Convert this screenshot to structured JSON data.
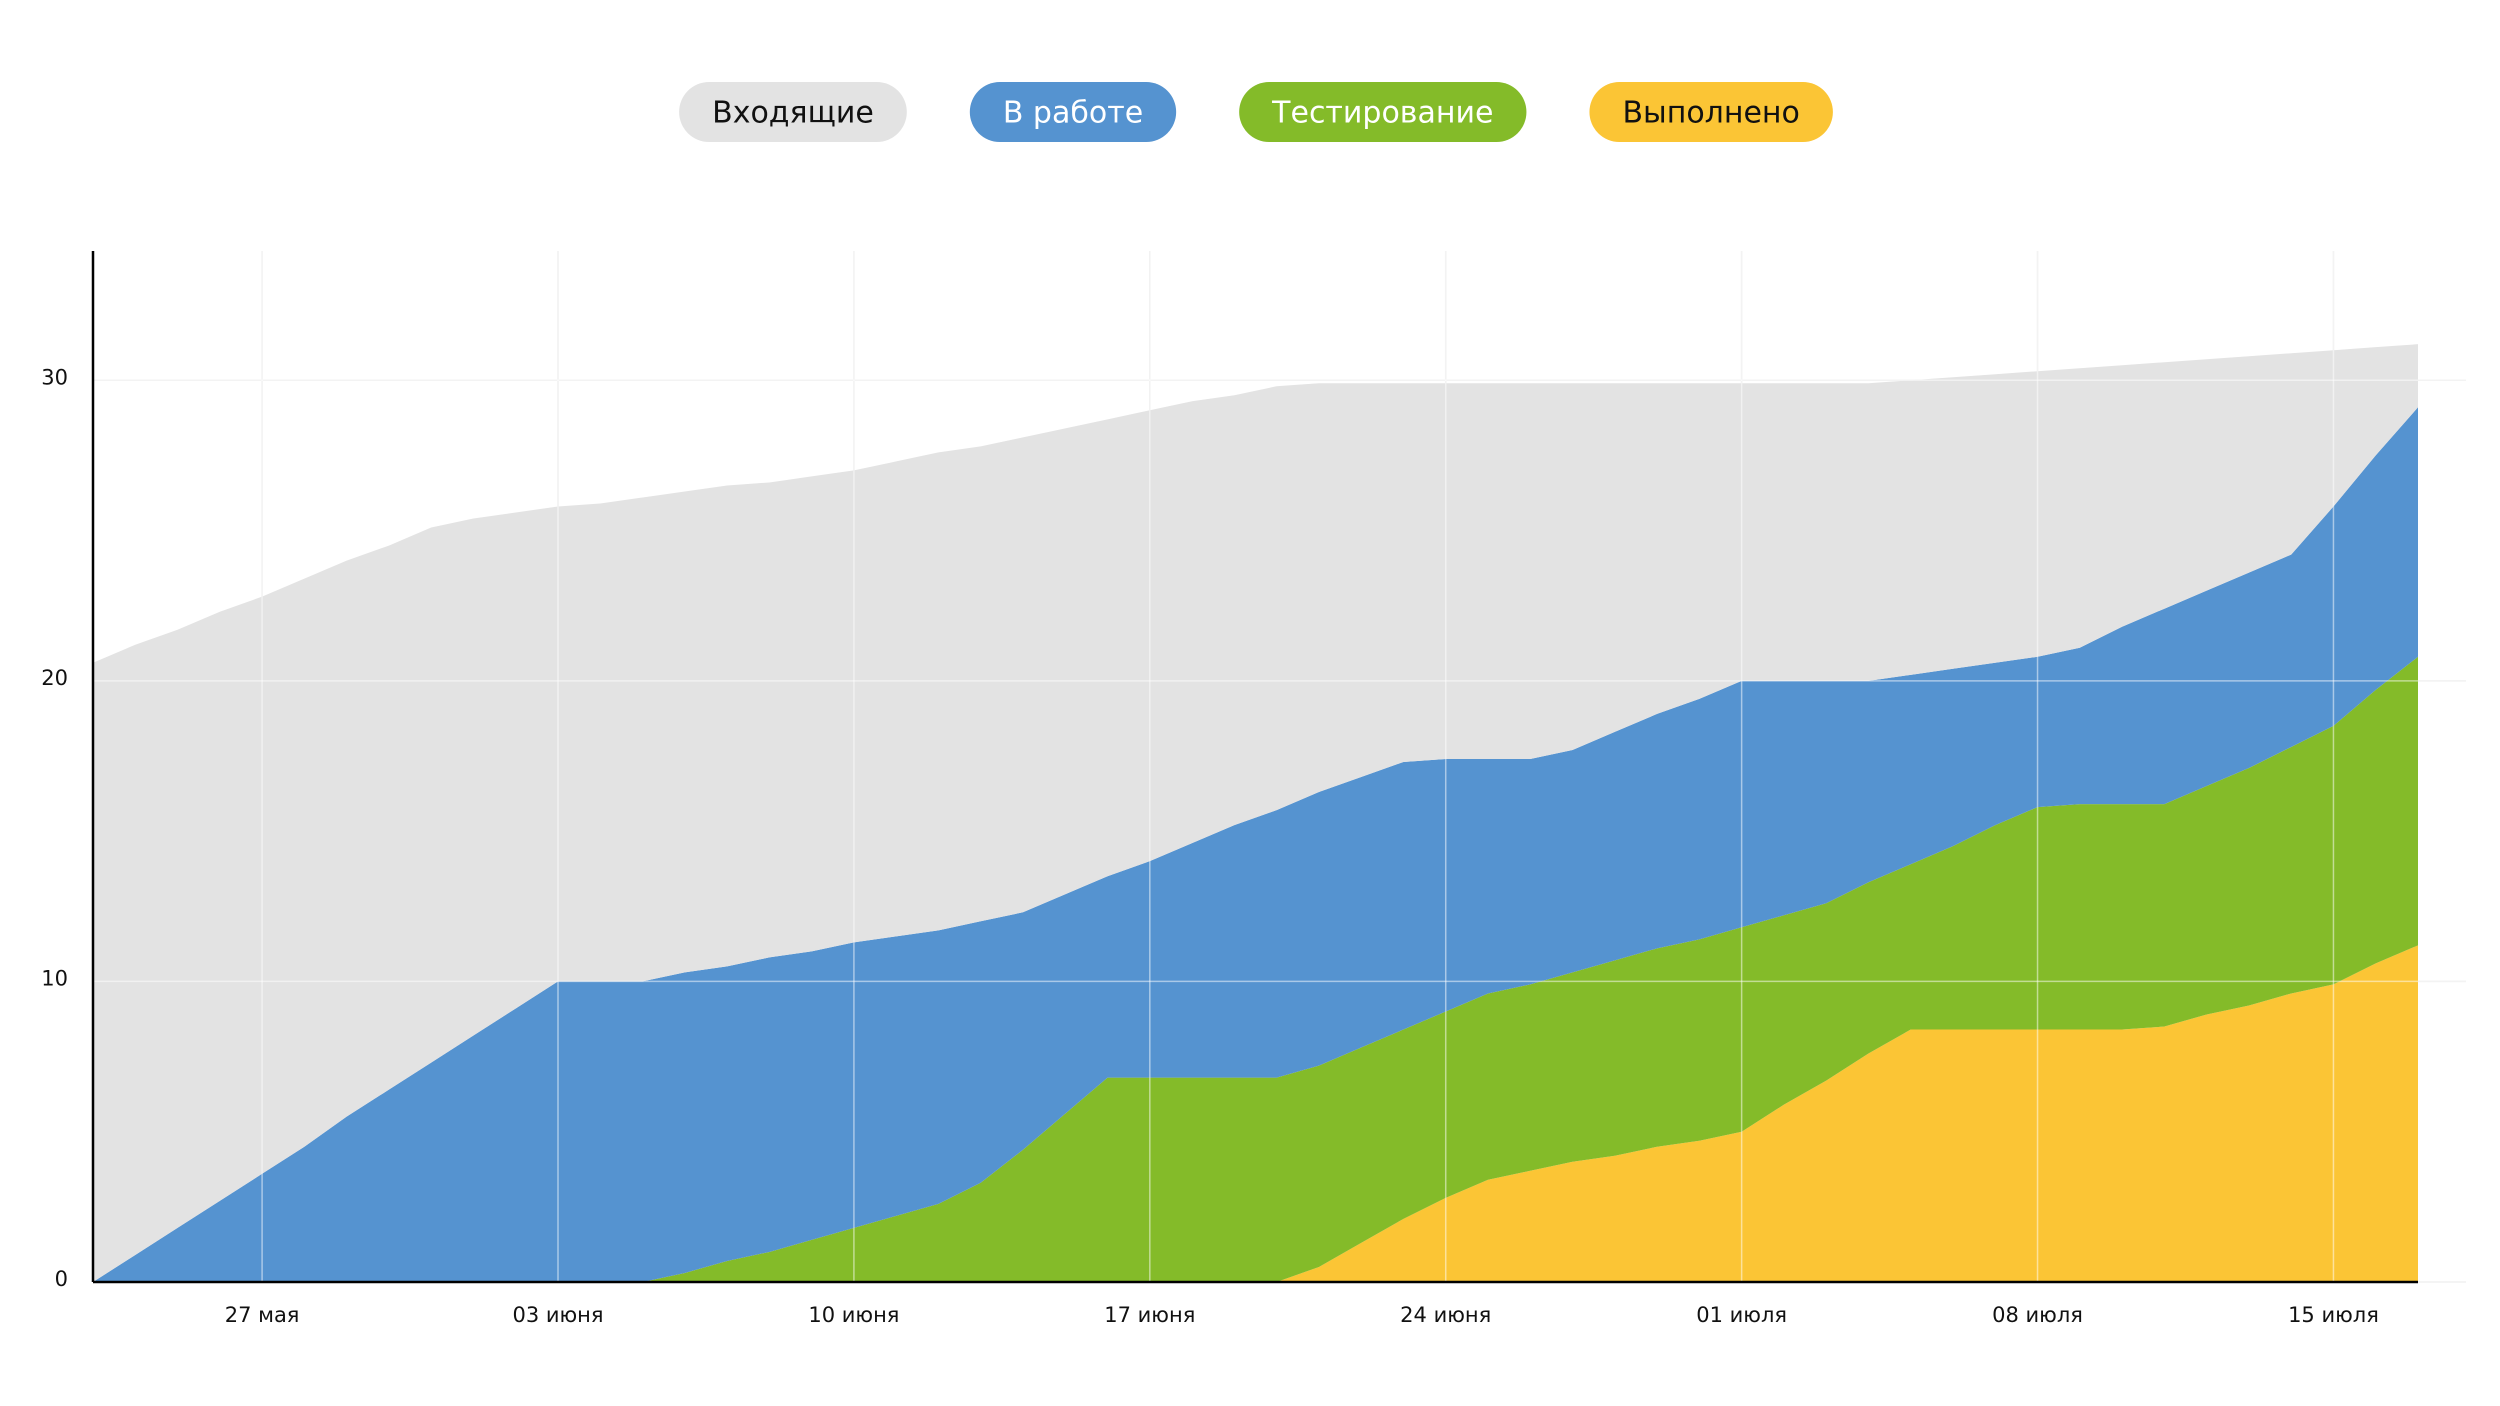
{
  "chart_data": {
    "type": "stacked_area",
    "categories": [
      null,
      null,
      null,
      null,
      "27 мая",
      null,
      null,
      null,
      null,
      null,
      null,
      "03 июня",
      null,
      null,
      null,
      null,
      null,
      null,
      "10 июня",
      null,
      null,
      null,
      null,
      null,
      null,
      "17 июня",
      null,
      null,
      null,
      null,
      null,
      null,
      "24 июня",
      null,
      null,
      null,
      null,
      null,
      null,
      "01 июля",
      null,
      null,
      null,
      null,
      null,
      null,
      "08 июля",
      null,
      null,
      null,
      null,
      null,
      null,
      "15 июля",
      null,
      null
    ],
    "series": [
      {
        "name": "Входящие",
        "color": "#e3e3e3",
        "values": [
          20.6,
          20.3,
          19.9,
          19.6,
          19.2,
          18.9,
          18.5,
          18.1,
          17.8,
          17.2,
          16.5,
          15.8,
          15.9,
          16.1,
          16.0,
          16.0,
          15.8,
          15.8,
          15.7,
          15.8,
          15.9,
          15.8,
          15.8,
          15.5,
          15.2,
          15.0,
          14.7,
          14.3,
          14.1,
          13.6,
          13.1,
          12.6,
          12.5,
          12.5,
          12.5,
          12.2,
          11.6,
          11.0,
          10.5,
          9.9,
          9.9,
          9.9,
          9.9,
          9.8,
          9.7,
          9.6,
          9.5,
          9.3,
          8.7,
          8.2,
          7.7,
          7.2,
          6.7,
          5.2,
          3.6,
          2.1
        ]
      },
      {
        "name": "В работе",
        "color": "#5593d0",
        "values": [
          0,
          0.9,
          1.8,
          2.7,
          3.6,
          4.5,
          5.5,
          6.4,
          7.3,
          8.2,
          9.1,
          10,
          10,
          10,
          10.0,
          9.8,
          9.8,
          9.6,
          9.5,
          9.3,
          9.1,
          8.7,
          7.9,
          7.3,
          6.7,
          7.2,
          7.8,
          8.4,
          8.9,
          9.1,
          9.0,
          8.9,
          8.4,
          7.8,
          7.5,
          7.4,
          7.6,
          7.8,
          8.0,
          8.2,
          7.8,
          7.4,
          6.7,
          6.3,
          5.9,
          5.4,
          5.0,
          5.2,
          5.9,
          6.5,
          6.5,
          6.5,
          6.4,
          7.3,
          7.8,
          8.3
        ]
      },
      {
        "name": "Тестирование",
        "color": "#84bb29",
        "values": [
          0,
          0,
          0,
          0,
          0,
          0,
          0,
          0,
          0,
          0,
          0,
          0,
          0,
          0,
          0.3,
          0.7,
          1.0,
          1.4,
          1.8,
          2.2,
          2.6,
          3.3,
          4.4,
          5.6,
          6.8,
          6.8,
          6.8,
          6.8,
          6.8,
          6.7,
          6.5,
          6.3,
          6.2,
          6.2,
          6.2,
          6.3,
          6.5,
          6.6,
          6.7,
          6.8,
          6.3,
          5.9,
          5.7,
          5.5,
          6.1,
          6.8,
          7.4,
          7.5,
          7.5,
          7.4,
          7.6,
          7.9,
          8.2,
          8.6,
          9.1,
          9.6
        ]
      },
      {
        "name": "Выполнено",
        "color": "#fbc535",
        "values": [
          0,
          0,
          0,
          0,
          0,
          0,
          0,
          0,
          0,
          0,
          0,
          0,
          0,
          0,
          0,
          0,
          0,
          0,
          0,
          0,
          0,
          0,
          0,
          0,
          0,
          0,
          0,
          0,
          0,
          0.5,
          1.3,
          2.1,
          2.8,
          3.4,
          3.7,
          4.0,
          4.2,
          4.5,
          4.7,
          5.0,
          5.9,
          6.7,
          7.6,
          8.4,
          8.4,
          8.4,
          8.4,
          8.4,
          8.4,
          8.5,
          8.9,
          9.2,
          9.6,
          9.9,
          10.6,
          11.2
        ]
      }
    ],
    "ylim": [
      0,
      34.3
    ],
    "yticks": [
      0,
      10,
      20,
      30
    ],
    "grid": true
  }
}
